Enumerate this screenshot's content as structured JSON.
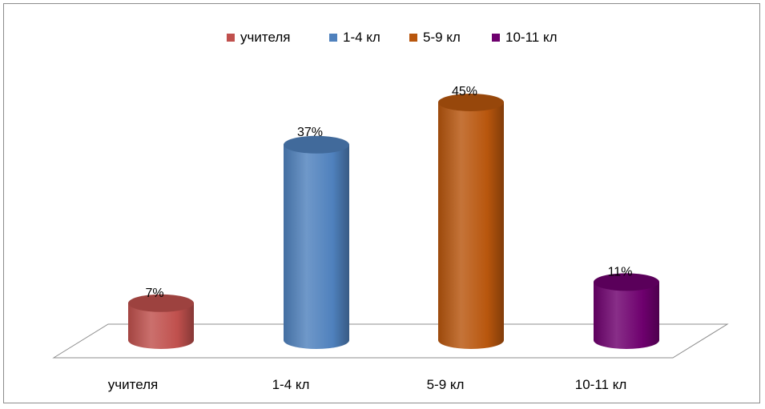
{
  "chart_data": {
    "type": "bar",
    "style": "3d-cylinder",
    "categories": [
      "учителя",
      "1-4 кл",
      "5-9 кл",
      "10-11 кл"
    ],
    "values": [
      7,
      37,
      45,
      11
    ],
    "value_labels": [
      "7%",
      "37%",
      "45%",
      "11%"
    ],
    "series": [
      {
        "name": "учителя",
        "color": "#c0504d"
      },
      {
        "name": "1-4 кл",
        "color": "#4f81bd"
      },
      {
        "name": "5-9 кл",
        "color": "#b8560d"
      },
      {
        "name": "10-11 кл",
        "color": "#6e006e"
      }
    ],
    "legend_position": "top",
    "grid": false,
    "ylim": [
      0,
      50
    ]
  }
}
